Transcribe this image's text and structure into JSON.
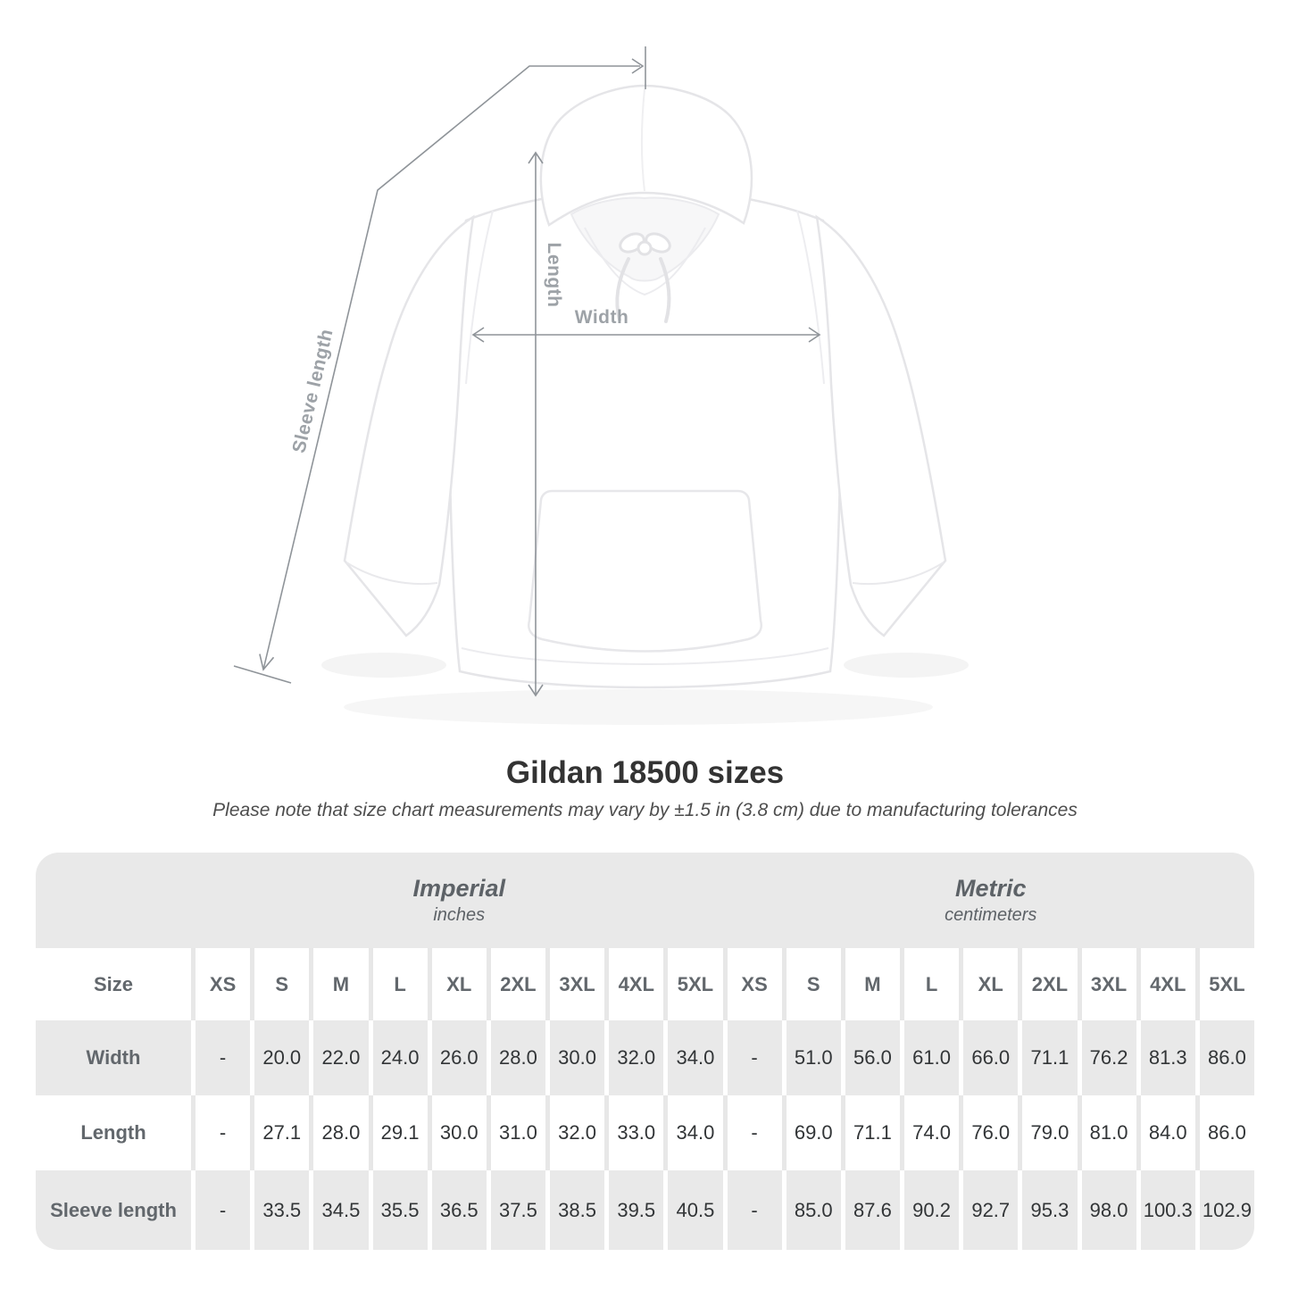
{
  "illustration": {
    "length_label": "Length",
    "width_label": "Width",
    "sleeve_label": "Sleeve length"
  },
  "title": "Gildan 18500 sizes",
  "subtitle": "Please note that size chart measurements may vary by ±1.5 in (3.8 cm) due to manufacturing tolerances",
  "table": {
    "unit_groups": [
      {
        "name": "Imperial",
        "unit": "inches"
      },
      {
        "name": "Metric",
        "unit": "centimeters"
      }
    ],
    "size_column_header": "Size",
    "size_headers": [
      "XS",
      "S",
      "M",
      "L",
      "XL",
      "2XL",
      "3XL",
      "4XL",
      "5XL",
      "XS",
      "S",
      "M",
      "L",
      "XL",
      "2XL",
      "3XL",
      "4XL",
      "5XL"
    ],
    "rows": [
      {
        "label": "Width",
        "values": [
          "-",
          "20.0",
          "22.0",
          "24.0",
          "26.0",
          "28.0",
          "30.0",
          "32.0",
          "34.0",
          "-",
          "51.0",
          "56.0",
          "61.0",
          "66.0",
          "71.1",
          "76.2",
          "81.3",
          "86.0"
        ]
      },
      {
        "label": "Length",
        "values": [
          "-",
          "27.1",
          "28.0",
          "29.1",
          "30.0",
          "31.0",
          "32.0",
          "33.0",
          "34.0",
          "-",
          "69.0",
          "71.1",
          "74.0",
          "76.0",
          "79.0",
          "81.0",
          "84.0",
          "86.0"
        ]
      },
      {
        "label": "Sleeve length",
        "values": [
          "-",
          "33.5",
          "34.5",
          "35.5",
          "36.5",
          "37.5",
          "38.5",
          "39.5",
          "40.5",
          "-",
          "85.0",
          "87.6",
          "90.2",
          "92.7",
          "95.3",
          "98.0",
          "100.3",
          "102.9"
        ]
      }
    ]
  },
  "colors": {
    "table_cell_gray": "#e9e9e9",
    "white_row_gap": "#e7e7e7",
    "header_text": "#62676c",
    "value_text": "#323537",
    "measure_line": "#8f9499",
    "measure_label": "#9da2a7",
    "hoodie_outline": "#e5e5e8"
  }
}
